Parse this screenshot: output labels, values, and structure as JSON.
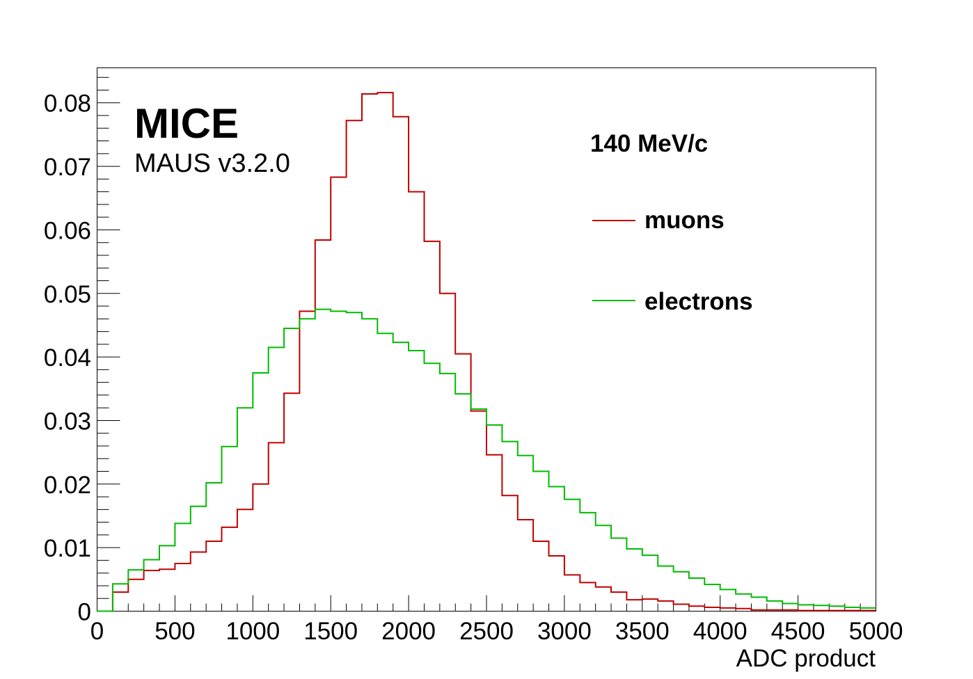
{
  "experiment": {
    "title": "MICE",
    "version": "MAUS v3.2.0"
  },
  "chart_data": {
    "type": "line",
    "style": "step-histogram",
    "xlabel": "ADC product",
    "ylabel": "",
    "xlim": [
      0,
      5000
    ],
    "ylim": [
      0,
      0.0855
    ],
    "bin_width": 100,
    "x_ticks": [
      "0",
      "500",
      "1000",
      "1500",
      "2000",
      "2500",
      "3000",
      "3500",
      "4000",
      "4500",
      "5000"
    ],
    "y_ticks": [
      "0",
      "0.01",
      "0.02",
      "0.03",
      "0.04",
      "0.05",
      "0.06",
      "0.07",
      "0.08"
    ],
    "annotation": "140 MeV/c",
    "legend_position": "top-right",
    "series": [
      {
        "name": "muons",
        "color": "#c00000",
        "values": [
          0.0,
          0.003,
          0.005,
          0.0064,
          0.0066,
          0.0075,
          0.0093,
          0.011,
          0.0132,
          0.016,
          0.02,
          0.0265,
          0.0343,
          0.0472,
          0.0584,
          0.0683,
          0.0772,
          0.0814,
          0.0816,
          0.0778,
          0.066,
          0.0582,
          0.05,
          0.0405,
          0.0315,
          0.0246,
          0.0182,
          0.0144,
          0.011,
          0.0087,
          0.0057,
          0.0045,
          0.0038,
          0.003,
          0.0018,
          0.0019,
          0.0016,
          0.0011,
          0.0008,
          0.0006,
          0.0005,
          0.0004,
          0.0002,
          0.0002,
          0.0002,
          0.0001,
          0.0001,
          0.0001,
          0.0001,
          0.0001
        ]
      },
      {
        "name": "electrons",
        "color": "#00bb00",
        "values": [
          0.0,
          0.0043,
          0.0065,
          0.0081,
          0.0103,
          0.0138,
          0.0165,
          0.0202,
          0.0259,
          0.032,
          0.0375,
          0.0415,
          0.0445,
          0.046,
          0.0475,
          0.0472,
          0.047,
          0.046,
          0.0437,
          0.0423,
          0.041,
          0.039,
          0.0374,
          0.0342,
          0.0318,
          0.0293,
          0.0267,
          0.0245,
          0.022,
          0.0196,
          0.0176,
          0.0155,
          0.0135,
          0.0115,
          0.0098,
          0.0088,
          0.0071,
          0.0062,
          0.0052,
          0.0042,
          0.0034,
          0.0027,
          0.0022,
          0.0016,
          0.0012,
          0.001,
          0.0009,
          0.0008,
          0.0006,
          0.0005
        ]
      }
    ]
  }
}
